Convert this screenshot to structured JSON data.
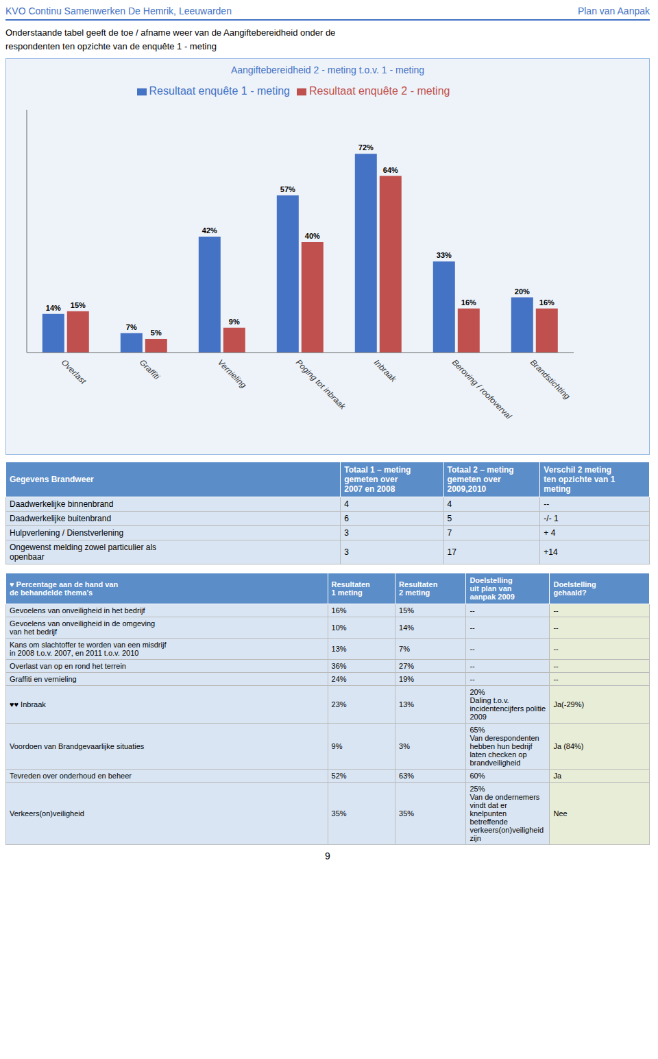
{
  "chart_data": {
    "type": "bar",
    "title": "Aangiftebereidheid 2 - meting t.o.v. 1 - meting",
    "categories": [
      "Overlast",
      "Graffiti",
      "Vernieling",
      "Poging tot inbraak",
      "Inbraak",
      "Beroving / roofoverval",
      "Brandstichting"
    ],
    "series": [
      {
        "name": "Resultaat enquête 1 - meting",
        "color": "#4472C4",
        "values": [
          14,
          7,
          42,
          57,
          72,
          33,
          20
        ],
        "value_labels": [
          "14%",
          "7%",
          "42%",
          "57%",
          "72%",
          "33%",
          "20%"
        ]
      },
      {
        "name": "Resultaat enquête 2 - meting",
        "color": "#C0504D",
        "values": [
          15,
          5,
          9,
          40,
          64,
          16,
          16
        ],
        "value_labels": [
          "15%",
          "5%",
          "9%",
          "40%",
          "64%",
          "16%",
          "16%"
        ]
      }
    ],
    "ylim": [
      0,
      88
    ],
    "yticks": [],
    "tick_labels": "x",
    "data_labels": true,
    "grid": false,
    "legend": "top"
  },
  "annotations": [
    "KVO Continu Samenwerken De Hemrik, Leeuwarden",
    "Plan van Aanpak",
    "Onderstaande tabel geeft de toe / afname weer van de Aangiftebereidheid onder de\nrespondenten ten opzichte van de enquête 1 - meting",
    "9"
  ],
  "tables": [
    {
      "columns": [
        "Gegevens Brandweer",
        "Totaal 1 – meting\ngemeten over\n2007 en 2008",
        "Totaal 2 – meting\ngemeten over\n2009,2010",
        "Verschil  2 meting\nten opzichte van 1\nmeting"
      ],
      "rows": [
        [
          "Daadwerkelijke  binnenbrand",
          "4",
          "4",
          "--"
        ],
        [
          "Daadwerkelijke  buitenbrand",
          "6",
          "5",
          "-/- 1"
        ],
        [
          "Hulpverlening / Dienstverlening",
          "3",
          "7",
          "+ 4"
        ],
        [
          "Ongewenst melding zowel particulier als\nopenbaar",
          "3",
          "17",
          "+14"
        ]
      ]
    },
    {
      "columns": [
        "♥ Percentage aan de hand van\nde behandelde thema's",
        "Resultaten\n1 meting",
        "Resultaten\n2 meting",
        "Doelstelling\nuit plan van\naanpak 2009",
        "Doelstelling\ngehaald?"
      ],
      "rows": [
        [
          "Gevoelens van onveiligheid in het bedrijf",
          "16%",
          "15%",
          "--",
          "--"
        ],
        [
          "Gevoelens van onveiligheid in de omgeving\nvan het bedrijf",
          "10%",
          "14%",
          "--",
          "--"
        ],
        [
          "Kans om slachtoffer te worden van een misdrijf\nin 2008 t.o.v. 2007, en 2011 t.o.v. 2010",
          "13%",
          "7%",
          "--",
          "--"
        ],
        [
          "Overlast van op en rond het terrein",
          "36%",
          "27%",
          "--",
          "--"
        ],
        [
          "Graffiti en vernieling",
          "24%",
          "19%",
          "--",
          "--"
        ],
        [
          "♥♥ Inbraak",
          "23%",
          "13%",
          "20%\nDaling t.o.v.\nincidentencijfers politie\n2009",
          "Ja(-29%)"
        ],
        [
          "Voordoen van Brandgevaarlijke situaties",
          "9%",
          "3%",
          "65%\nVan derespondenten\nhebben hun bedrijf\nlaten checken op\nbrandveiligheid",
          "Ja (84%)"
        ],
        [
          "Tevreden over onderhoud en beheer",
          "52%",
          "63%",
          "60%",
          "Ja"
        ],
        [
          "Verkeers(on)veiligheid",
          "35%",
          "35%",
          "25%\nVan de ondernemers\nvindt dat er knelpunten\nbetreffende\nverkeers(on)veiligheid\nzijn",
          "Nee"
        ]
      ]
    }
  ]
}
